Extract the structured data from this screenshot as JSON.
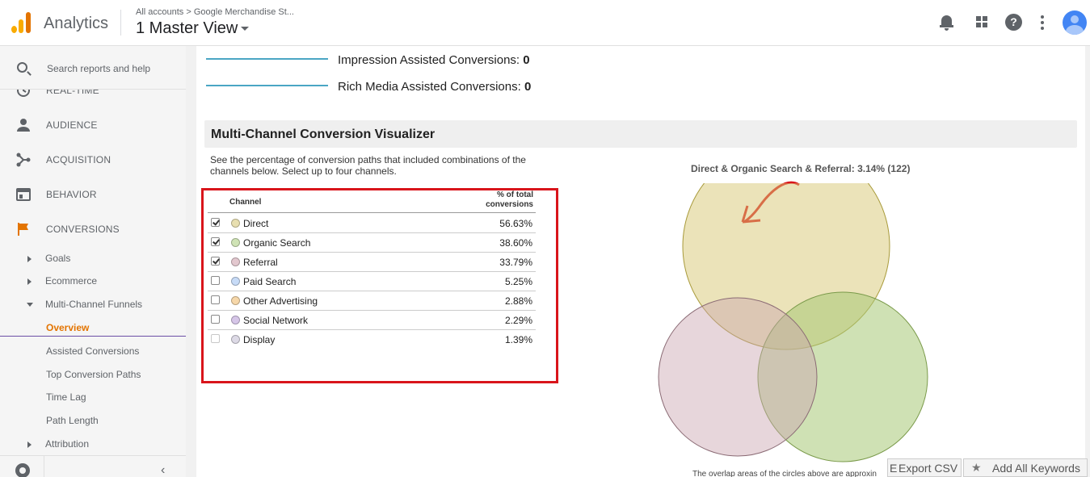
{
  "header": {
    "app_name": "Analytics",
    "breadcrumb": "All accounts  >  Google Merchandise St...",
    "view_name": "1 Master View"
  },
  "sidebar": {
    "search_placeholder": "Search reports and help",
    "items": [
      {
        "label": "REAL-TIME",
        "icon": "clock-icon"
      },
      {
        "label": "AUDIENCE",
        "icon": "person-icon"
      },
      {
        "label": "ACQUISITION",
        "icon": "acquisition-icon"
      },
      {
        "label": "BEHAVIOR",
        "icon": "behavior-icon"
      },
      {
        "label": "CONVERSIONS",
        "icon": "flag-icon"
      }
    ],
    "sub_items": [
      {
        "label": "Goals"
      },
      {
        "label": "Ecommerce"
      },
      {
        "label": "Multi-Channel Funnels"
      }
    ],
    "mcf_items": [
      {
        "label": "Overview"
      },
      {
        "label": "Assisted Conversions"
      },
      {
        "label": "Top Conversion Paths"
      },
      {
        "label": "Time Lag"
      },
      {
        "label": "Path Length"
      }
    ],
    "attribution": {
      "label": "Attribution"
    },
    "collapse_label": "‹"
  },
  "legend": [
    {
      "label": "Impression Assisted Conversions:",
      "value": "0"
    },
    {
      "label": "Rich Media Assisted Conversions:",
      "value": "0"
    }
  ],
  "visualizer": {
    "title": "Multi-Channel Conversion Visualizer",
    "description": "See the percentage of conversion paths that included combinations of the channels below. Select up to four channels.",
    "col_channel": "Channel",
    "col_pct": "% of total conversions",
    "rows": [
      {
        "channel": "Direct",
        "pct": "56.63%",
        "checked": true,
        "color": "#e8dfb0"
      },
      {
        "channel": "Organic Search",
        "pct": "38.60%",
        "checked": true,
        "color": "#cfe3b5"
      },
      {
        "channel": "Referral",
        "pct": "33.79%",
        "checked": true,
        "color": "#e3c8cf"
      },
      {
        "channel": "Paid Search",
        "pct": "5.25%",
        "checked": false,
        "color": "#c7dbf7"
      },
      {
        "channel": "Other Advertising",
        "pct": "2.88%",
        "checked": false,
        "color": "#f6d7a9"
      },
      {
        "channel": "Social Network",
        "pct": "2.29%",
        "checked": false,
        "color": "#d6c6e8"
      },
      {
        "channel": "Display",
        "pct": "1.39%",
        "checked": false,
        "color": "#dddae6"
      }
    ],
    "venn_title": "Direct & Organic Search & Referral: 3.14% (122)",
    "venn_note": "The overlap areas of the circles above are approxin"
  },
  "buttons": {
    "export_prefix": "E",
    "export_csv": "Export CSV",
    "add_keywords": "Add All Keywords"
  },
  "colors": {
    "accent": "#e37400",
    "annotation": "#d9151b",
    "legend_line": "#4aa6c4"
  }
}
